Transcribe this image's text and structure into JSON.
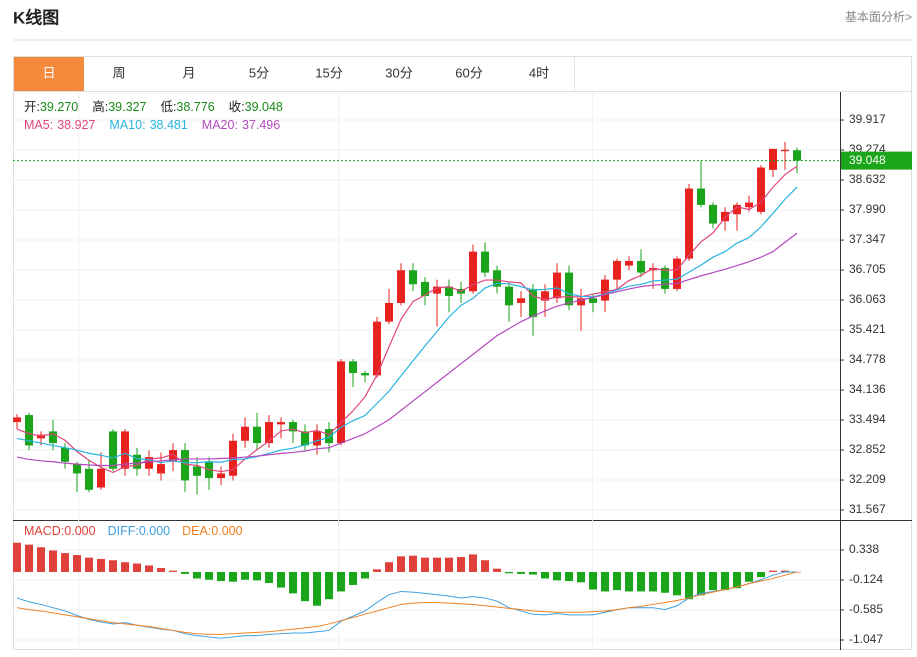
{
  "page": {
    "title": "K线图",
    "link": "基本面分析>",
    "tabs": [
      "日",
      "周",
      "月",
      "5分",
      "15分",
      "30分",
      "60分",
      "4时"
    ]
  },
  "chart_data": [
    {
      "type": "candlestick",
      "ohlc_legend": [
        {
          "label": "开:",
          "value": "39.270"
        },
        {
          "label": "高:",
          "value": "39.327"
        },
        {
          "label": "低:",
          "value": "38.776"
        },
        {
          "label": "收:",
          "value": "39.048"
        }
      ],
      "up_color": "#e8221f",
      "down_color": "#1aa51a",
      "open": [
        33.45,
        33.6,
        33.1,
        33.25,
        32.9,
        32.55,
        32.45,
        32.05,
        33.25,
        32.45,
        32.75,
        32.45,
        32.35,
        32.6,
        32.85,
        32.5,
        32.6,
        32.25,
        32.3,
        33.05,
        33.35,
        33.0,
        33.4,
        33.45,
        33.25,
        32.95,
        33.3,
        33.0,
        34.75,
        34.5,
        34.45,
        35.6,
        36.0,
        36.7,
        36.45,
        36.2,
        36.35,
        36.3,
        36.25,
        37.1,
        36.7,
        36.35,
        36.0,
        36.3,
        36.05,
        36.1,
        36.65,
        35.95,
        36.1,
        36.05,
        36.5,
        36.8,
        36.9,
        36.7,
        36.75,
        36.3,
        36.95,
        38.45,
        38.1,
        37.75,
        37.9,
        38.05,
        37.95,
        38.85,
        39.25,
        39.27
      ],
      "high": [
        33.62,
        33.65,
        33.25,
        33.5,
        33.0,
        32.6,
        32.65,
        32.8,
        33.3,
        33.3,
        32.9,
        32.85,
        32.8,
        33.0,
        33.0,
        32.7,
        32.7,
        32.5,
        33.2,
        33.55,
        33.65,
        33.6,
        33.55,
        33.5,
        33.4,
        33.4,
        33.45,
        34.8,
        34.8,
        34.55,
        35.7,
        36.3,
        36.85,
        36.85,
        36.55,
        36.5,
        36.5,
        36.45,
        37.25,
        37.3,
        36.8,
        36.45,
        36.25,
        36.4,
        36.4,
        36.85,
        36.8,
        36.3,
        36.2,
        36.6,
        36.95,
        37.0,
        37.15,
        36.85,
        36.8,
        37.0,
        38.55,
        39.05,
        38.15,
        38.05,
        38.15,
        38.3,
        38.95,
        39.3,
        39.45,
        39.327
      ],
      "low": [
        33.3,
        32.85,
        32.95,
        32.85,
        32.45,
        31.95,
        31.95,
        32.0,
        32.4,
        32.3,
        32.3,
        32.3,
        32.2,
        32.4,
        31.95,
        31.9,
        32.0,
        32.1,
        32.2,
        32.9,
        32.85,
        32.9,
        33.1,
        33.0,
        32.85,
        32.75,
        32.8,
        32.95,
        34.2,
        34.3,
        34.4,
        35.55,
        35.95,
        36.25,
        35.95,
        35.5,
        35.8,
        36.0,
        36.2,
        36.55,
        36.2,
        35.6,
        35.7,
        35.3,
        35.7,
        36.0,
        35.85,
        35.4,
        35.8,
        35.8,
        36.3,
        36.7,
        36.55,
        36.3,
        36.2,
        36.25,
        36.9,
        38.05,
        37.6,
        37.55,
        37.55,
        37.95,
        37.9,
        38.7,
        38.85,
        38.776
      ],
      "close": [
        33.55,
        32.95,
        33.18,
        33.0,
        32.6,
        32.35,
        32.0,
        32.45,
        32.45,
        33.25,
        32.45,
        32.7,
        32.55,
        32.85,
        32.2,
        32.3,
        32.25,
        32.35,
        33.05,
        33.35,
        33.0,
        33.45,
        33.45,
        33.25,
        32.95,
        33.25,
        33.0,
        34.75,
        34.5,
        34.45,
        35.6,
        36.0,
        36.7,
        36.4,
        36.15,
        36.35,
        36.15,
        36.2,
        37.1,
        36.65,
        36.35,
        35.95,
        36.1,
        35.7,
        36.25,
        36.65,
        35.95,
        36.1,
        36.0,
        36.5,
        36.9,
        36.9,
        36.65,
        36.75,
        36.3,
        36.95,
        38.45,
        38.1,
        37.7,
        37.95,
        38.1,
        38.15,
        38.9,
        39.3,
        39.28,
        39.048
      ],
      "series": [
        {
          "name": "MA5:",
          "value_label": "38.927",
          "color": "#e2457c",
          "values": [
            33.3,
            33.2,
            33.15,
            33.2,
            33.06,
            32.82,
            32.63,
            32.48,
            32.37,
            32.5,
            32.52,
            32.66,
            32.68,
            32.76,
            32.55,
            32.52,
            32.43,
            32.39,
            32.43,
            32.66,
            32.86,
            33.04,
            33.26,
            33.3,
            33.22,
            33.27,
            33.18,
            33.44,
            33.69,
            33.99,
            34.46,
            35.06,
            35.65,
            36.03,
            36.17,
            36.32,
            36.35,
            36.25,
            36.39,
            36.49,
            36.49,
            36.45,
            36.43,
            36.15,
            36.07,
            36.13,
            36.13,
            36.13,
            36.19,
            36.24,
            36.29,
            36.48,
            36.59,
            36.74,
            36.7,
            36.71,
            37.02,
            37.31,
            37.5,
            37.83,
            38.06,
            38.0,
            38.16,
            38.48,
            38.75,
            38.927
          ]
        },
        {
          "name": "MA10:",
          "value_label": "38.481",
          "color": "#27b4e0",
          "values": [
            33.1,
            33.05,
            33.0,
            32.95,
            32.9,
            32.85,
            32.78,
            32.74,
            32.68,
            32.78,
            32.67,
            32.64,
            32.58,
            32.62,
            32.58,
            32.58,
            32.6,
            32.59,
            32.65,
            32.66,
            32.71,
            32.78,
            32.85,
            32.89,
            32.96,
            33.05,
            33.12,
            33.34,
            33.48,
            33.59,
            33.85,
            34.11,
            34.44,
            34.76,
            35.08,
            35.39,
            35.7,
            35.95,
            36.1,
            36.32,
            36.42,
            36.41,
            36.35,
            36.28,
            36.29,
            36.32,
            36.2,
            36.14,
            36.13,
            36.19,
            36.28,
            36.36,
            36.4,
            36.47,
            36.49,
            36.51,
            36.66,
            36.81,
            36.98,
            37.1,
            37.28,
            37.4,
            37.63,
            37.92,
            38.22,
            38.481
          ]
        },
        {
          "name": "MA20:",
          "value_label": "37.496",
          "color": "#b44bc0",
          "values": [
            32.7,
            32.65,
            32.62,
            32.6,
            32.57,
            32.55,
            32.53,
            32.52,
            32.52,
            32.55,
            32.57,
            32.6,
            32.62,
            32.64,
            32.66,
            32.66,
            32.66,
            32.67,
            32.68,
            32.7,
            32.72,
            32.75,
            32.78,
            32.8,
            32.83,
            32.88,
            32.9,
            33.0,
            33.1,
            33.2,
            33.35,
            33.5,
            33.7,
            33.9,
            34.1,
            34.3,
            34.5,
            34.7,
            34.9,
            35.1,
            35.3,
            35.45,
            35.6,
            35.72,
            35.83,
            35.93,
            36.0,
            36.06,
            36.12,
            36.18,
            36.24,
            36.3,
            36.35,
            36.38,
            36.4,
            36.42,
            36.5,
            36.58,
            36.65,
            36.72,
            36.8,
            36.88,
            36.98,
            37.1,
            37.3,
            37.496
          ]
        }
      ],
      "last_color": "#1aa51a",
      "ylim": [
        31.353,
        40.517
      ],
      "yticks": [
        39.917,
        39.274,
        38.632,
        {
          "value": 37.99,
          "label": "37.990"
        },
        37.347,
        36.705,
        36.063,
        35.421,
        34.778,
        34.136,
        33.494,
        32.852,
        32.209,
        31.567
      ]
    },
    {
      "type": "macd",
      "hist": {
        "name": "MACD:",
        "value_label": "0.000",
        "color": "#e0403a",
        "neg_color": "#1aa51a",
        "values": [
          0.45,
          0.42,
          0.38,
          0.33,
          0.29,
          0.26,
          0.22,
          0.2,
          0.18,
          0.15,
          0.13,
          0.1,
          0.06,
          0.02,
          -0.03,
          -0.1,
          -0.12,
          -0.14,
          -0.15,
          -0.12,
          -0.13,
          -0.17,
          -0.24,
          -0.33,
          -0.45,
          -0.52,
          -0.42,
          -0.3,
          -0.2,
          -0.1,
          0.04,
          0.15,
          0.24,
          0.25,
          0.22,
          0.22,
          0.22,
          0.23,
          0.27,
          0.18,
          0.05,
          -0.02,
          -0.03,
          -0.04,
          -0.1,
          -0.13,
          -0.14,
          -0.16,
          -0.27,
          -0.3,
          -0.28,
          -0.3,
          -0.3,
          -0.3,
          -0.32,
          -0.36,
          -0.42,
          -0.36,
          -0.28,
          -0.28,
          -0.25,
          -0.15,
          -0.08,
          0.02,
          0.02,
          0.0
        ]
      },
      "series": [
        {
          "name": "DIFF:",
          "value_label": "0.000",
          "color": "#3ea0e0",
          "values": [
            -0.4,
            -0.46,
            -0.5,
            -0.55,
            -0.6,
            -0.67,
            -0.73,
            -0.77,
            -0.8,
            -0.78,
            -0.82,
            -0.85,
            -0.88,
            -0.9,
            -0.95,
            -0.98,
            -1.0,
            -1.02,
            -1.0,
            -0.98,
            -0.98,
            -0.96,
            -0.95,
            -0.94,
            -0.94,
            -0.92,
            -0.9,
            -0.76,
            -0.68,
            -0.6,
            -0.47,
            -0.35,
            -0.3,
            -0.31,
            -0.33,
            -0.35,
            -0.37,
            -0.4,
            -0.38,
            -0.4,
            -0.45,
            -0.55,
            -0.6,
            -0.65,
            -0.66,
            -0.64,
            -0.66,
            -0.66,
            -0.66,
            -0.62,
            -0.58,
            -0.55,
            -0.55,
            -0.55,
            -0.58,
            -0.52,
            -0.4,
            -0.33,
            -0.3,
            -0.27,
            -0.23,
            -0.18,
            -0.12,
            -0.05,
            0.0,
            0.0
          ]
        },
        {
          "name": "DEA:",
          "value_label": "0.000",
          "color": "#f08020",
          "values": [
            -0.55,
            -0.58,
            -0.6,
            -0.63,
            -0.66,
            -0.69,
            -0.72,
            -0.75,
            -0.78,
            -0.8,
            -0.82,
            -0.84,
            -0.87,
            -0.9,
            -0.93,
            -0.95,
            -0.96,
            -0.96,
            -0.95,
            -0.94,
            -0.93,
            -0.92,
            -0.9,
            -0.88,
            -0.86,
            -0.84,
            -0.8,
            -0.75,
            -0.7,
            -0.65,
            -0.6,
            -0.55,
            -0.5,
            -0.48,
            -0.47,
            -0.47,
            -0.48,
            -0.49,
            -0.5,
            -0.52,
            -0.54,
            -0.56,
            -0.58,
            -0.6,
            -0.61,
            -0.62,
            -0.62,
            -0.62,
            -0.61,
            -0.6,
            -0.58,
            -0.55,
            -0.53,
            -0.5,
            -0.47,
            -0.44,
            -0.4,
            -0.35,
            -0.31,
            -0.27,
            -0.23,
            -0.18,
            -0.14,
            -0.1,
            -0.05,
            0.0
          ]
        }
      ],
      "ylim": [
        -1.201,
        0.784
      ],
      "yticks": [
        0.338,
        -0.124,
        -0.585,
        -1.047
      ]
    }
  ]
}
